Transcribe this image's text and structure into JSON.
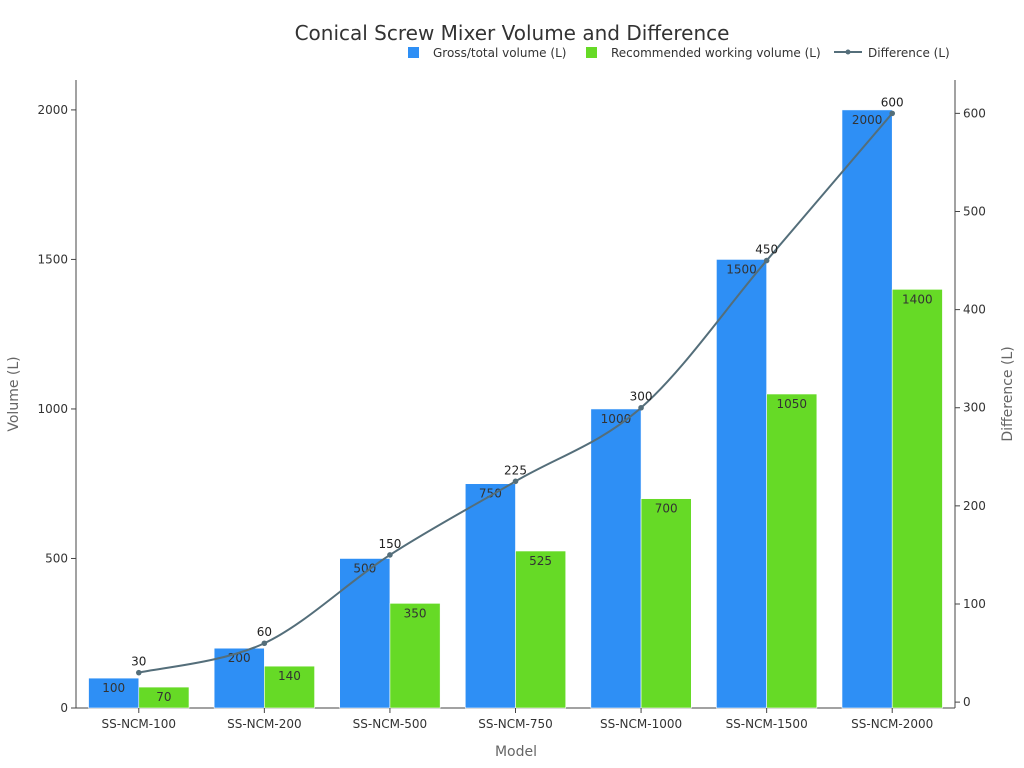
{
  "chart_data": {
    "type": "bar",
    "title": "Conical Screw Mixer Volume and Difference",
    "xlabel": "Model",
    "ylabel": "Volume (L)",
    "y2label": "Difference (L)",
    "categories": [
      "SS-NCM-100",
      "SS-NCM-200",
      "SS-NCM-500",
      "SS-NCM-750",
      "SS-NCM-1000",
      "SS-NCM-1500",
      "SS-NCM-2000"
    ],
    "series": [
      {
        "name": "Gross/total volume (L)",
        "type": "bar",
        "axis": "left",
        "color": "#2e8ff5",
        "values": [
          100,
          200,
          500,
          750,
          1000,
          1500,
          2000
        ]
      },
      {
        "name": "Recommended working volume (L)",
        "type": "bar",
        "axis": "left",
        "color": "#66da26",
        "values": [
          70,
          140,
          350,
          525,
          700,
          1050,
          1400
        ]
      },
      {
        "name": "Difference (L)",
        "type": "line",
        "axis": "right",
        "color": "#546e7a",
        "values": [
          30,
          60,
          150,
          225,
          300,
          450,
          600
        ]
      }
    ],
    "ylim": [
      0,
      2100
    ],
    "y2lim": [
      -6,
      634
    ],
    "yticks": [
      0,
      500,
      1000,
      1500,
      2000
    ],
    "y2ticks": [
      0,
      100,
      200,
      300,
      400,
      500,
      600
    ],
    "legend_position": "top-right",
    "grid": false
  }
}
